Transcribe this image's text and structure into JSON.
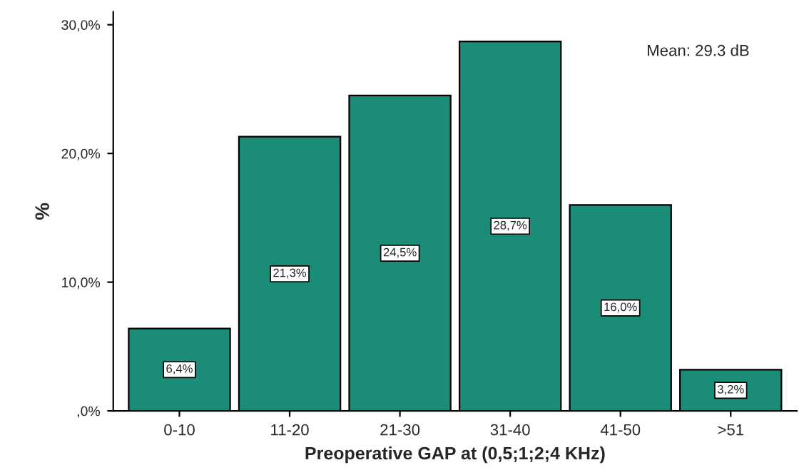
{
  "chart_data": {
    "type": "bar",
    "xlabel": "Preoperative GAP at (0,5;1;2;4 KHz)",
    "ylabel": "%",
    "categories": [
      "0-10",
      "11-20",
      "21-30",
      "31-40",
      "41-50",
      ">51"
    ],
    "values": [
      6.4,
      21.3,
      24.5,
      28.7,
      16.0,
      3.2
    ],
    "value_labels": [
      "6,4%",
      "21,3%",
      "24,5%",
      "28,7%",
      "16,0%",
      "3,2%"
    ],
    "color": "#1b8c78",
    "ylim": [
      0,
      31
    ],
    "yticks": [
      {
        "value": 0,
        "label": ",0%"
      },
      {
        "value": 10,
        "label": "10,0%"
      },
      {
        "value": 20,
        "label": "20,0%"
      },
      {
        "value": 30,
        "label": "30,0%"
      }
    ],
    "annotations": [
      "Mean: 29.3 dB"
    ],
    "grid": false,
    "legend": false
  }
}
